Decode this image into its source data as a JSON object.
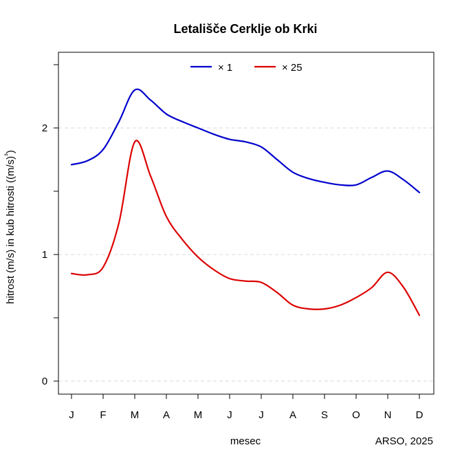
{
  "chart_data": {
    "type": "line",
    "title": "Letališče Cerklje ob Krki",
    "xlabel": "mesec",
    "ylabel": "hitrost (m/s) in kub hitrosti ((m/s)³)",
    "credit": "ARSO, 2025",
    "categories": [
      "J",
      "F",
      "M",
      "A",
      "M",
      "J",
      "J",
      "A",
      "S",
      "O",
      "N",
      "D"
    ],
    "x": [
      1,
      1.5,
      2,
      2.5,
      3,
      3.5,
      4,
      4.5,
      5,
      5.5,
      6,
      6.5,
      7,
      7.5,
      8,
      8.5,
      9,
      9.5,
      10,
      10.5,
      11,
      11.5,
      12
    ],
    "ylim": [
      -0.1,
      2.5
    ],
    "yticks": [
      0,
      1,
      2
    ],
    "ytick_labels": [
      "0",
      "1",
      "2"
    ],
    "grid": "horizontal-dashed",
    "legend": "top-center",
    "series": [
      {
        "name": "× 1",
        "color": "#0000CD",
        "values": [
          1.71,
          1.74,
          1.83,
          2.05,
          2.3,
          2.22,
          2.11,
          2.05,
          2.0,
          1.95,
          1.91,
          1.89,
          1.85,
          1.75,
          1.65,
          1.6,
          1.57,
          1.55,
          1.55,
          1.61,
          1.66,
          1.59,
          1.49
        ]
      },
      {
        "name": "× 25",
        "color": "#DD0000",
        "values": [
          0.85,
          0.84,
          0.9,
          1.25,
          1.89,
          1.62,
          1.3,
          1.12,
          0.98,
          0.88,
          0.81,
          0.79,
          0.78,
          0.7,
          0.6,
          0.57,
          0.57,
          0.6,
          0.66,
          0.74,
          0.86,
          0.74,
          0.52
        ]
      }
    ]
  }
}
